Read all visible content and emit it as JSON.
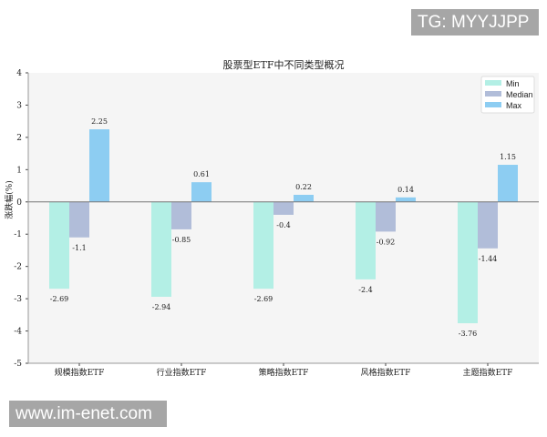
{
  "watermarks": {
    "top": "TG: MYYJJPP",
    "bottom": "www.im-enet.com"
  },
  "chart_data": {
    "type": "bar",
    "title": "股票型ETF中不同类型概况",
    "xlabel": "",
    "ylabel": "涨跌幅(%)",
    "ylim": [
      -5,
      4
    ],
    "yticks": [
      -5,
      -4,
      -3,
      -2,
      -1,
      0,
      1,
      2,
      3,
      4
    ],
    "categories": [
      "规模指数ETF",
      "行业指数ETF",
      "策略指数ETF",
      "风格指数ETF",
      "主题指数ETF"
    ],
    "series": [
      {
        "name": "Min",
        "color": "#b3efe5",
        "values": [
          -2.69,
          -2.94,
          -2.69,
          -2.4,
          -3.76
        ]
      },
      {
        "name": "Median",
        "color": "#b1bdd9",
        "values": [
          -1.1,
          -0.85,
          -0.4,
          -0.92,
          -1.44
        ]
      },
      {
        "name": "Max",
        "color": "#8dcdf2",
        "values": [
          2.25,
          0.61,
          0.22,
          0.14,
          1.15
        ]
      }
    ],
    "legend": "top-right",
    "grid": false
  }
}
